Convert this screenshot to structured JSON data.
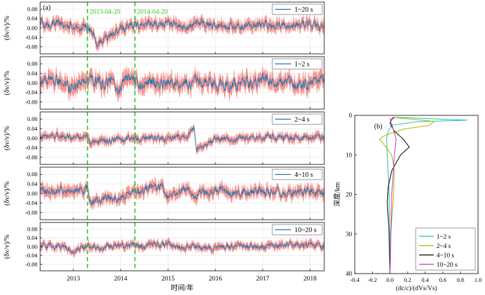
{
  "chart_data": [
    {
      "type": "line",
      "panel_label": "(a)",
      "xlabel": "时间/年",
      "xlim": [
        2012.3,
        2018.3
      ],
      "xticks": [
        2013,
        2014,
        2015,
        2016,
        2017,
        2018
      ],
      "xtick_labels": [
        "2013",
        "2014",
        "2015",
        "2016",
        "2017",
        "2018"
      ],
      "ylabel": "(δv/v)/%",
      "ylim": [
        -0.11,
        0.11
      ],
      "yticks": [
        0.08,
        0.04,
        0.0,
        -0.04,
        -0.08
      ],
      "ytick_labels": [
        "0.08",
        "0.04",
        "0.00",
        "-0.04",
        "-0.08"
      ],
      "event_lines": [
        {
          "x": 2013.3,
          "label": "2013-04-20",
          "color": "#22cc22"
        },
        {
          "x": 2014.3,
          "label": "2014-04-20",
          "color": "#22cc22"
        }
      ],
      "series_colors": {
        "mean": "#1f77b4",
        "uncertainty_band": "#f4837d"
      },
      "uncertainty_halfwidth": [
        0.022,
        0.03,
        0.016,
        0.022,
        0.016
      ],
      "panels": [
        {
          "legend": "1~20 s",
          "x": [
            2012.3,
            2012.6,
            2012.9,
            2013.1,
            2013.25,
            2013.4,
            2013.5,
            2013.7,
            2014.0,
            2014.3,
            2014.6,
            2015.0,
            2015.4,
            2015.6,
            2016.0,
            2016.5,
            2017.0,
            2017.5,
            2018.0,
            2018.3
          ],
          "y": [
            0.015,
            0.02,
            0.01,
            0.0,
            0.01,
            -0.02,
            -0.07,
            -0.04,
            0.0,
            0.015,
            0.02,
            0.02,
            0.0,
            0.025,
            0.01,
            0.005,
            0.015,
            0.01,
            0.02,
            0.0
          ]
        },
        {
          "legend": "1~2 s",
          "x": [
            2012.3,
            2012.6,
            2012.9,
            2013.1,
            2013.3,
            2013.6,
            2013.8,
            2013.95,
            2014.1,
            2014.4,
            2014.8,
            2015.2,
            2015.6,
            2016.0,
            2016.5,
            2017.0,
            2017.5,
            2018.0,
            2018.3
          ],
          "y": [
            0.0,
            0.01,
            -0.01,
            -0.02,
            0.02,
            -0.005,
            0.0,
            -0.04,
            0.03,
            0.0,
            0.005,
            -0.005,
            0.01,
            0.0,
            -0.01,
            0.015,
            0.0,
            -0.01,
            0.01
          ]
        },
        {
          "legend": "2~4 s",
          "x": [
            2012.3,
            2012.7,
            2013.0,
            2013.3,
            2013.35,
            2013.6,
            2014.0,
            2014.5,
            2015.0,
            2015.4,
            2015.55,
            2015.6,
            2016.0,
            2016.5,
            2017.0,
            2017.5,
            2018.0,
            2018.3
          ],
          "y": [
            0.005,
            0.01,
            0.005,
            0.005,
            -0.02,
            -0.01,
            -0.005,
            0.0,
            -0.005,
            0.01,
            0.05,
            -0.05,
            -0.005,
            0.0,
            0.005,
            0.0,
            0.005,
            0.0
          ]
        },
        {
          "legend": "4~10 s",
          "x": [
            2012.3,
            2012.7,
            2013.0,
            2013.3,
            2013.35,
            2013.7,
            2014.0,
            2014.3,
            2014.6,
            2014.9,
            2015.0,
            2015.3,
            2015.6,
            2016.0,
            2016.5,
            2017.0,
            2017.5,
            2018.0,
            2018.3
          ],
          "y": [
            0.01,
            0.015,
            0.01,
            0.02,
            -0.04,
            -0.02,
            -0.015,
            0.0,
            0.02,
            0.025,
            -0.02,
            0.02,
            0.0,
            0.015,
            0.005,
            0.01,
            0.0,
            0.01,
            0.005
          ]
        },
        {
          "legend": "10~20 s",
          "x": [
            2012.3,
            2012.8,
            2013.0,
            2013.3,
            2013.6,
            2014.0,
            2014.5,
            2015.0,
            2015.2,
            2015.6,
            2016.0,
            2016.5,
            2017.0,
            2017.5,
            2018.0,
            2018.3
          ],
          "y": [
            0.005,
            0.0,
            -0.02,
            0.0,
            -0.005,
            0.01,
            0.0,
            0.015,
            -0.005,
            0.0,
            -0.01,
            0.005,
            0.0,
            0.01,
            0.005,
            0.0
          ]
        }
      ]
    },
    {
      "type": "line",
      "panel_label": "(b)",
      "xlabel": "(dc/c)/(dVs/Vs)",
      "ylabel": "深度/km",
      "xlim": [
        -0.4,
        1.0
      ],
      "ylim": [
        0,
        40
      ],
      "y_inverted": true,
      "xticks": [
        -0.4,
        -0.2,
        0.0,
        0.2,
        0.4,
        0.6,
        0.8,
        1.0
      ],
      "xtick_labels": [
        "-0.4",
        "-0.2",
        "0.0",
        "0.2",
        "0.4",
        "0.6",
        "0.8",
        "1.0"
      ],
      "yticks": [
        0,
        10,
        20,
        30,
        40
      ],
      "ytick_labels": [
        "0",
        "10",
        "20",
        "30",
        "40"
      ],
      "series": [
        {
          "name": "1~2 s",
          "color": "#20c0b0",
          "depth": [
            0.5,
            1.2,
            1.6,
            2.5,
            4,
            6,
            10,
            20,
            30,
            40
          ],
          "values": [
            0.06,
            0.88,
            0.3,
            0.02,
            -0.02,
            -0.04,
            -0.03,
            -0.01,
            0.0,
            0.0
          ]
        },
        {
          "name": "2~4 s",
          "color": "#b8b000",
          "depth": [
            0.5,
            1.5,
            2.5,
            3.5,
            5,
            6,
            7,
            10,
            14,
            20,
            30,
            40
          ],
          "values": [
            0.02,
            0.5,
            0.45,
            0.15,
            -0.05,
            -0.12,
            -0.08,
            0.02,
            0.05,
            0.04,
            0.01,
            0.0
          ]
        },
        {
          "name": "4~10 s",
          "color": "#000000",
          "depth": [
            0.5,
            1,
            2,
            4,
            6,
            8,
            10,
            14,
            18,
            22,
            30,
            40
          ],
          "values": [
            0.05,
            0.02,
            0.0,
            0.05,
            0.15,
            0.22,
            0.12,
            0.02,
            -0.02,
            -0.03,
            -0.01,
            0.0
          ]
        },
        {
          "name": "10~20 s",
          "color": "#c040c0",
          "depth": [
            0.5,
            1.5,
            3,
            6,
            10,
            20,
            30,
            40
          ],
          "values": [
            0.0,
            0.01,
            0.03,
            0.07,
            0.05,
            0.02,
            0.01,
            0.0
          ]
        }
      ]
    }
  ]
}
